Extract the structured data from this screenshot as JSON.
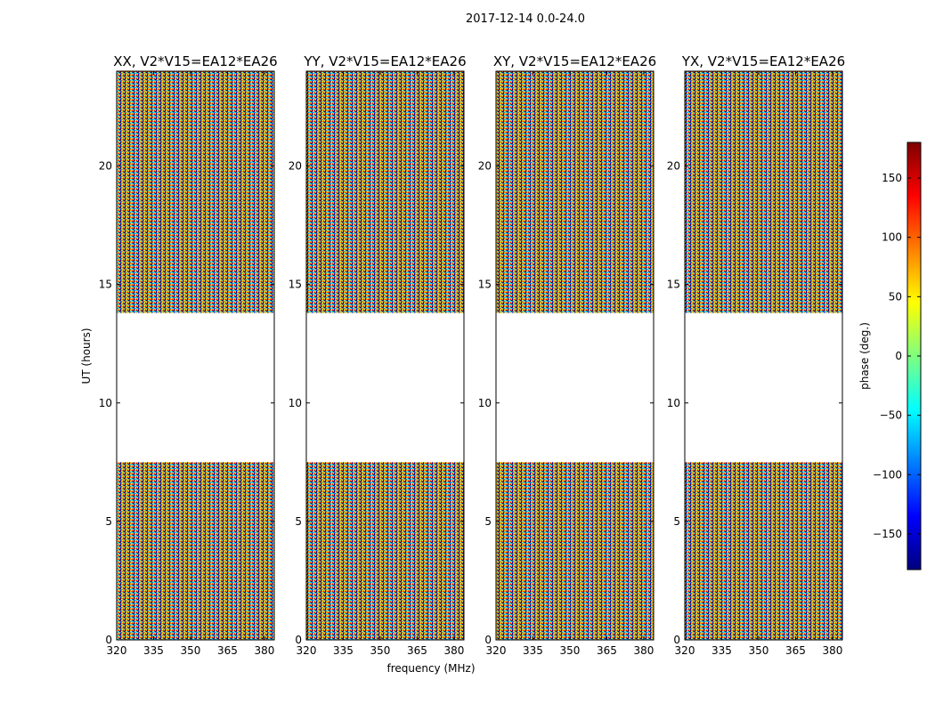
{
  "suptitle": "2017-12-14 0.0-24.0",
  "colors": {
    "colormap": [
      "#00007f",
      "#0000ff",
      "#007fff",
      "#00ffff",
      "#7fff7f",
      "#ffff00",
      "#ff7f00",
      "#ff0000",
      "#7f0000"
    ],
    "axis": "#000000",
    "background": "#ffffff"
  },
  "chart_data": {
    "type": "heatmap",
    "shared_xlabel": "frequency (MHz)",
    "shared_ylabel": "UT (hours)",
    "xlim": [
      320,
      384
    ],
    "ylim": [
      0,
      24
    ],
    "x_ticks": [
      320,
      335,
      350,
      365,
      380
    ],
    "y_ticks": [
      0,
      5,
      10,
      15,
      20
    ],
    "panels": [
      {
        "title": "XX, V2*V15=EA12*EA26",
        "polarization": "XX",
        "baseline": "V2*V15=EA12*EA26"
      },
      {
        "title": "YY, V2*V15=EA12*EA26",
        "polarization": "YY",
        "baseline": "V2*V15=EA12*EA26"
      },
      {
        "title": "XY, V2*V15=EA12*EA26",
        "polarization": "XY",
        "baseline": "V2*V15=EA12*EA26"
      },
      {
        "title": "YX, V2*V15=EA12*EA26",
        "polarization": "YX",
        "baseline": "V2*V15=EA12*EA26"
      }
    ],
    "data_coverage_hours": [
      [
        0.0,
        7.5
      ],
      [
        13.8,
        24.0
      ]
    ],
    "gap_hours": [
      7.5,
      13.8
    ],
    "colorbar": {
      "label": "phase (deg.)",
      "range": [
        -180,
        180
      ],
      "ticks": [
        -150,
        -100,
        -50,
        0,
        50,
        100,
        150
      ],
      "tick_labels": [
        "−150",
        "−100",
        "−50",
        "0",
        "50",
        "100",
        "150"
      ]
    }
  }
}
